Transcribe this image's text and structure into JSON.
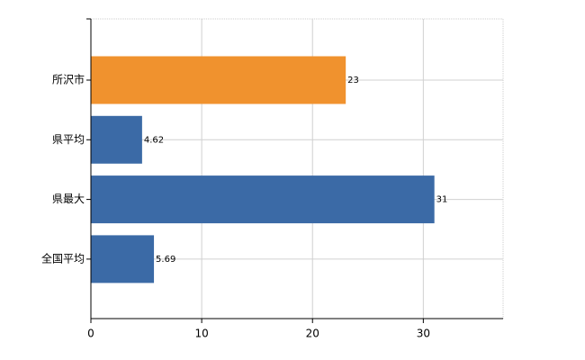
{
  "chart_data": {
    "type": "hbar",
    "categories": [
      "所沢市",
      "県平均",
      "県最大",
      "全国平均"
    ],
    "values": [
      23,
      4.62,
      31,
      5.69
    ],
    "colors": [
      "#f0922e",
      "#3b6aa6",
      "#3b6aa6",
      "#3b6aa6"
    ],
    "xlim": [
      0,
      37.2
    ],
    "xticks": [
      0,
      10,
      20,
      30
    ],
    "grid": true
  }
}
